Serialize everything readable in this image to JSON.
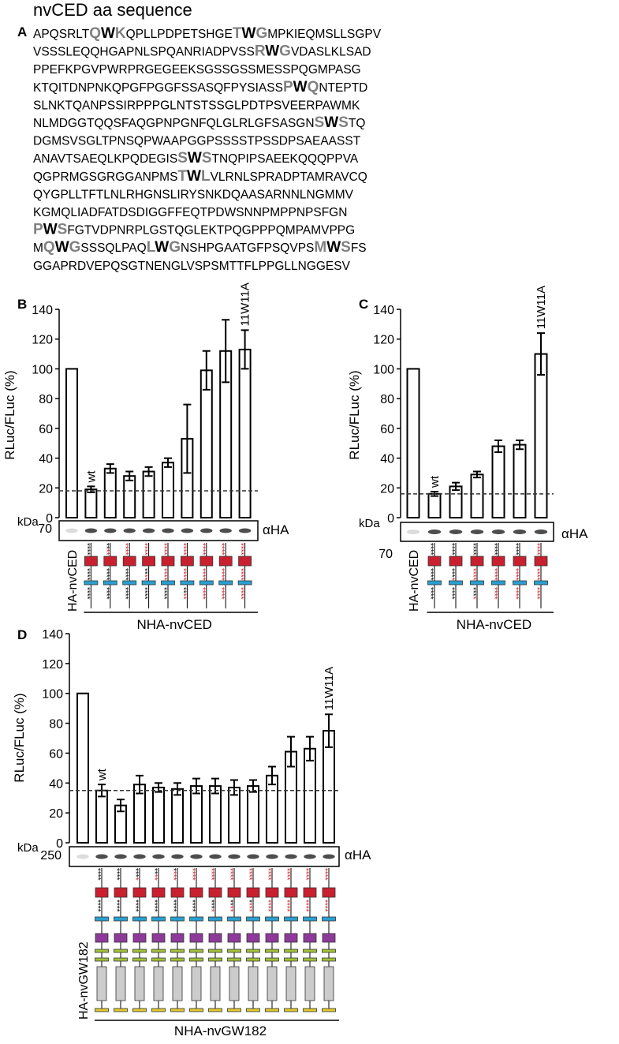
{
  "sequence": {
    "panel": "A",
    "title": "nvCED aa sequence",
    "lines": [
      [
        {
          "text": "APQSRLT",
          "style": "n"
        },
        {
          "text": "Q",
          "style": "g"
        },
        {
          "text": "W",
          "style": "b"
        },
        {
          "text": "K",
          "style": "g"
        },
        {
          "text": "QPLLPDPETSHGE",
          "style": "n"
        },
        {
          "text": "T",
          "style": "g"
        },
        {
          "text": "W",
          "style": "b"
        },
        {
          "text": "G",
          "style": "g"
        },
        {
          "text": "MPKIEQMSLLSGPV",
          "style": "n"
        }
      ],
      [
        {
          "text": "VSSSLEQQHGAPNLSPQANRIADPVSS",
          "style": "n"
        },
        {
          "text": "R",
          "style": "g"
        },
        {
          "text": "W",
          "style": "b"
        },
        {
          "text": "G",
          "style": "g"
        },
        {
          "text": "VDASLKLSAD",
          "style": "n"
        }
      ],
      [
        {
          "text": "PPEFKPGVPWRPRGEGEEKSGSSGSSMESSPQGMPASG",
          "style": "n"
        }
      ],
      [
        {
          "text": "KTQITDNPNKQPGFPGGFSSASQFPYSIASS",
          "style": "n"
        },
        {
          "text": "P",
          "style": "g"
        },
        {
          "text": "W",
          "style": "b"
        },
        {
          "text": "Q",
          "style": "g"
        },
        {
          "text": "NTEPTD",
          "style": "n"
        }
      ],
      [
        {
          "text": "SLNKTQANPSSIRPPPGLNTSTSSGLPDTPSVEERPAWMK",
          "style": "n"
        }
      ],
      [
        {
          "text": "NLMDGGTQQSFAQGPNPGNFQLGLRLGFSASGN",
          "style": "n"
        },
        {
          "text": "S",
          "style": "g"
        },
        {
          "text": "W",
          "style": "b"
        },
        {
          "text": "S",
          "style": "g"
        },
        {
          "text": "TQ",
          "style": "n"
        }
      ],
      [
        {
          "text": "DGMSVSGLTPNSQPWAAPGGPSSSSTPSSDPSAEAASST",
          "style": "n"
        }
      ],
      [
        {
          "text": "ANAVTSAEQLKPQDEGIS",
          "style": "n"
        },
        {
          "text": "S",
          "style": "g"
        },
        {
          "text": "W",
          "style": "b"
        },
        {
          "text": "S",
          "style": "g"
        },
        {
          "text": "TNQPIPSAEEKQQQPPVA",
          "style": "n"
        }
      ],
      [
        {
          "text": "QGPRMGSGRGGANPMS",
          "style": "n"
        },
        {
          "text": "T",
          "style": "g"
        },
        {
          "text": "W",
          "style": "b"
        },
        {
          "text": "L",
          "style": "g"
        },
        {
          "text": "VLRNLSPRADPTAMRAVCQ",
          "style": "n"
        }
      ],
      [
        {
          "text": "QYGPLLTFTLNLRHGNSLIRYSNKDQAASARNNLNGMMV",
          "style": "n"
        }
      ],
      [
        {
          "text": "KGMQLIADFATDSDIGGFFEQTPDWSNNPMPPNPSFGN",
          "style": "n"
        }
      ],
      [
        {
          "text": "P",
          "style": "g"
        },
        {
          "text": "W",
          "style": "b"
        },
        {
          "text": "S",
          "style": "g"
        },
        {
          "text": "FGTVDPNRPLGSTQGLEKTPQGPPPQMPAMVPPG",
          "style": "n"
        }
      ],
      [
        {
          "text": "M",
          "style": "n"
        },
        {
          "text": "Q",
          "style": "g"
        },
        {
          "text": "W",
          "style": "b"
        },
        {
          "text": "G",
          "style": "g"
        },
        {
          "text": "SSSQLPAQ",
          "style": "n"
        },
        {
          "text": "L",
          "style": "g"
        },
        {
          "text": "W",
          "style": "b"
        },
        {
          "text": "G",
          "style": "g"
        },
        {
          "text": "NSHPGAATGFPSQVPS",
          "style": "n"
        },
        {
          "text": "M",
          "style": "g"
        },
        {
          "text": "W",
          "style": "b"
        },
        {
          "text": "S",
          "style": "g"
        },
        {
          "text": "FS",
          "style": "n"
        }
      ],
      [
        {
          "text": "GGAPRDVEPQSGTNENGLVSPSMTTFLPPGLLNGGESV",
          "style": "n"
        }
      ]
    ]
  },
  "chart_data": [
    {
      "type": "bar",
      "panel": "B",
      "y_label": "RLuc/FLuc (%)",
      "categories": [
        "HA-nvCED",
        null,
        null,
        null,
        null,
        null,
        null,
        null,
        null,
        null
      ],
      "bar_labels": [
        null,
        "wt",
        null,
        null,
        null,
        null,
        null,
        null,
        null,
        "11W11A"
      ],
      "values": [
        100,
        19,
        33,
        28,
        31,
        37,
        53,
        99,
        112,
        113
      ],
      "errors": [
        null,
        2,
        3,
        3,
        3,
        3,
        23,
        13,
        21,
        13
      ],
      "dashed_line": 18,
      "ylim": [
        0,
        140
      ],
      "yticks": [
        0,
        20,
        40,
        60,
        80,
        100,
        120,
        140
      ],
      "blot": {
        "unit": "kDa",
        "marker": "70",
        "antibody": "αHA"
      },
      "group_label": "NHA-nvCED",
      "constructs": [
        [
          [
            [
              "****",
              "#000000"
            ]
          ],
          [
            [
              "****",
              "#000000"
            ]
          ],
          [
            [
              "****",
              "#000000"
            ]
          ]
        ],
        [
          [
            [
              "**",
              "#000000"
            ],
            [
              "**",
              "#d0202a"
            ]
          ],
          [
            [
              "****",
              "#000000"
            ]
          ],
          [
            [
              "****",
              "#000000"
            ]
          ]
        ],
        [
          [
            [
              "****",
              "#d0202a"
            ]
          ],
          [
            [
              "****",
              "#000000"
            ]
          ],
          [
            [
              "****",
              "#000000"
            ]
          ]
        ],
        [
          [
            [
              "****",
              "#d0202a"
            ]
          ],
          [
            [
              "**",
              "#000000"
            ],
            [
              "**",
              "#d0202a"
            ]
          ],
          [
            [
              "****",
              "#000000"
            ]
          ]
        ],
        [
          [
            [
              "****",
              "#d0202a"
            ]
          ],
          [
            [
              "****",
              "#d0202a"
            ]
          ],
          [
            [
              "****",
              "#000000"
            ]
          ]
        ],
        [
          [
            [
              "****",
              "#d0202a"
            ]
          ],
          [
            [
              "****",
              "#d0202a"
            ]
          ],
          [
            [
              "**",
              "#000000"
            ],
            [
              "**",
              "#d0202a"
            ]
          ]
        ],
        [
          [
            [
              "****",
              "#d0202a"
            ]
          ],
          [
            [
              "****",
              "#d0202a"
            ]
          ],
          [
            [
              "****",
              "#d0202a"
            ]
          ]
        ],
        [
          [
            [
              "****",
              "#d0202a"
            ]
          ],
          [
            [
              "****",
              "#d0202a"
            ]
          ],
          [
            [
              "****",
              "#d0202a"
            ]
          ]
        ],
        [
          [
            [
              "****",
              "#d0202a"
            ]
          ],
          [
            [
              "****",
              "#d0202a"
            ]
          ],
          [
            [
              "****",
              "#d0202a"
            ]
          ]
        ]
      ]
    },
    {
      "type": "bar",
      "panel": "C",
      "y_label": "RLuc/FLuc (%)",
      "categories": [
        "HA-nvCED",
        null,
        null,
        null,
        null,
        null,
        null
      ],
      "bar_labels": [
        null,
        "wt",
        null,
        null,
        null,
        null,
        "11W11A"
      ],
      "values": [
        100,
        16,
        21,
        29,
        48,
        49,
        110
      ],
      "errors": [
        null,
        1.5,
        2.5,
        2,
        4,
        3,
        14
      ],
      "dashed_line": 16,
      "ylim": [
        0,
        140
      ],
      "yticks": [
        0,
        20,
        40,
        60,
        80,
        100,
        120,
        140
      ],
      "blot": {
        "unit": "kDa",
        "marker": "70",
        "antibody": "αHA"
      },
      "group_label": "NHA-nvCED",
      "constructs": [
        [
          [
            [
              "****",
              "#000000"
            ]
          ],
          [
            [
              "****",
              "#000000"
            ]
          ],
          [
            [
              "****",
              "#000000"
            ]
          ]
        ],
        [
          [
            [
              "****",
              "#000000"
            ]
          ],
          [
            [
              "***",
              "#000000"
            ],
            [
              "*",
              "#d0202a"
            ]
          ],
          [
            [
              "****",
              "#000000"
            ]
          ]
        ],
        [
          [
            [
              "****",
              "#000000"
            ]
          ],
          [
            [
              "****",
              "#d0202a"
            ]
          ],
          [
            [
              "***",
              "#000000"
            ],
            [
              "*",
              "#d0202a"
            ]
          ]
        ],
        [
          [
            [
              "****",
              "#000000"
            ]
          ],
          [
            [
              "****",
              "#d0202a"
            ]
          ],
          [
            [
              "****",
              "#d0202a"
            ]
          ]
        ],
        [
          [
            [
              "****",
              "#000000"
            ]
          ],
          [
            [
              "****",
              "#d0202a"
            ]
          ],
          [
            [
              "****",
              "#d0202a"
            ]
          ]
        ],
        [
          [
            [
              "****",
              "#d0202a"
            ]
          ],
          [
            [
              "****",
              "#d0202a"
            ]
          ],
          [
            [
              "****",
              "#d0202a"
            ]
          ]
        ]
      ]
    },
    {
      "type": "bar",
      "panel": "D",
      "y_label": "RLuc/FLuc (%)",
      "categories": [
        "HA-nvGW182",
        null,
        null,
        null,
        null,
        null,
        null,
        null,
        null,
        null,
        null,
        null,
        null,
        null
      ],
      "bar_labels": [
        null,
        "wt",
        null,
        null,
        null,
        null,
        null,
        null,
        null,
        null,
        null,
        null,
        null,
        "11W11A"
      ],
      "values": [
        100,
        35,
        25,
        39,
        37,
        36,
        38,
        38,
        37,
        38,
        45,
        61,
        63,
        75
      ],
      "errors": [
        null,
        4,
        4,
        6,
        3,
        4,
        5,
        5,
        5,
        4,
        6,
        10,
        8,
        11
      ],
      "dashed_line": 35,
      "ylim": [
        0,
        140
      ],
      "yticks": [
        0,
        20,
        40,
        60,
        80,
        100,
        120,
        140
      ],
      "blot": {
        "unit": "kDa",
        "marker": "250",
        "antibody": "αHA"
      },
      "group_label": "NHA-nvGW182",
      "constructs": [
        [
          [
            [
              "****",
              "#000000"
            ]
          ],
          [
            [
              "****",
              "#000000"
            ]
          ]
        ],
        [
          [
            [
              "****",
              "#000000"
            ]
          ],
          [
            [
              "****",
              "#000000"
            ]
          ]
        ],
        [
          [
            [
              "***",
              "#000000"
            ],
            [
              "*",
              "#d0202a"
            ]
          ],
          [
            [
              "****",
              "#000000"
            ]
          ]
        ],
        [
          [
            [
              "**",
              "#000000"
            ],
            [
              "**",
              "#d0202a"
            ]
          ],
          [
            [
              "****",
              "#000000"
            ]
          ]
        ],
        [
          [
            [
              "*",
              "#000000"
            ],
            [
              "***",
              "#d0202a"
            ]
          ],
          [
            [
              "****",
              "#000000"
            ]
          ]
        ],
        [
          [
            [
              "****",
              "#d0202a"
            ]
          ],
          [
            [
              "****",
              "#000000"
            ]
          ]
        ],
        [
          [
            [
              "****",
              "#d0202a"
            ]
          ],
          [
            [
              "***",
              "#000000"
            ],
            [
              "*",
              "#d0202a"
            ]
          ]
        ],
        [
          [
            [
              "****",
              "#d0202a"
            ]
          ],
          [
            [
              "**",
              "#000000"
            ],
            [
              "**",
              "#d0202a"
            ]
          ]
        ],
        [
          [
            [
              "****",
              "#d0202a"
            ]
          ],
          [
            [
              "*",
              "#000000"
            ],
            [
              "***",
              "#d0202a"
            ]
          ]
        ],
        [
          [
            [
              "****",
              "#d0202a"
            ]
          ],
          [
            [
              "****",
              "#d0202a"
            ]
          ]
        ],
        [
          [
            [
              "****",
              "#d0202a"
            ]
          ],
          [
            [
              "****",
              "#d0202a"
            ]
          ]
        ],
        [
          [
            [
              "****",
              "#d0202a"
            ]
          ],
          [
            [
              "****",
              "#d0202a"
            ]
          ]
        ],
        [
          [
            [
              "****",
              "#d0202a"
            ]
          ],
          [
            [
              "****",
              "#d0202a"
            ]
          ]
        ]
      ]
    }
  ]
}
